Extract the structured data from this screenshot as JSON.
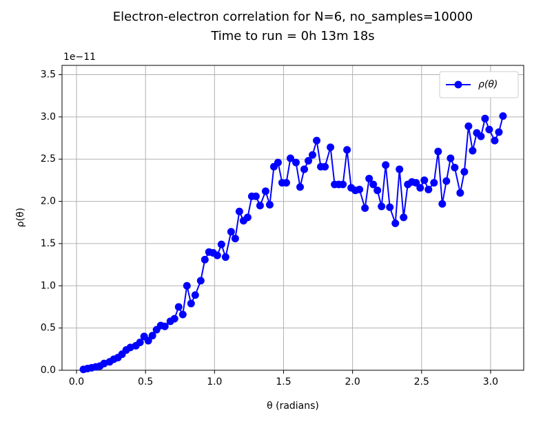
{
  "chart_data": {
    "type": "line",
    "title": "Electron-electron correlation for N=6, no_samples=10000",
    "subtitle": "Time to run = 0h 13m 18s",
    "x_label": "θ (radians)",
    "y_label": "ρ(θ)",
    "y_offset_text": "1e−11",
    "x": [
      0.05,
      0.08,
      0.11,
      0.14,
      0.17,
      0.2,
      0.24,
      0.27,
      0.3,
      0.33,
      0.36,
      0.39,
      0.43,
      0.46,
      0.49,
      0.52,
      0.55,
      0.58,
      0.61,
      0.64,
      0.68,
      0.71,
      0.74,
      0.77,
      0.8,
      0.83,
      0.86,
      0.9,
      0.93,
      0.96,
      0.99,
      1.02,
      1.05,
      1.08,
      1.12,
      1.15,
      1.18,
      1.21,
      1.24,
      1.27,
      1.3,
      1.33,
      1.37,
      1.4,
      1.43,
      1.46,
      1.49,
      1.52,
      1.55,
      1.59,
      1.62,
      1.65,
      1.68,
      1.71,
      1.74,
      1.77,
      1.8,
      1.84,
      1.87,
      1.9,
      1.93,
      1.96,
      1.99,
      2.02,
      2.05,
      2.09,
      2.12,
      2.15,
      2.18,
      2.21,
      2.24,
      2.27,
      2.31,
      2.34,
      2.37,
      2.4,
      2.43,
      2.46,
      2.49,
      2.52,
      2.55,
      2.59,
      2.62,
      2.65,
      2.68,
      2.71,
      2.74,
      2.78,
      2.81,
      2.84,
      2.87,
      2.9,
      2.93,
      2.96,
      2.99,
      3.03,
      3.06,
      3.09
    ],
    "series": [
      {
        "name": "ρ(θ)",
        "color": "#0000ff",
        "values": [
          0.01,
          0.02,
          0.03,
          0.04,
          0.05,
          0.08,
          0.1,
          0.13,
          0.15,
          0.19,
          0.24,
          0.27,
          0.29,
          0.33,
          0.4,
          0.35,
          0.41,
          0.48,
          0.53,
          0.52,
          0.58,
          0.61,
          0.75,
          0.66,
          1.0,
          0.79,
          0.89,
          1.06,
          1.31,
          1.4,
          1.39,
          1.36,
          1.49,
          1.34,
          1.64,
          1.56,
          1.88,
          1.77,
          1.81,
          2.06,
          2.06,
          1.95,
          2.12,
          1.96,
          2.41,
          2.46,
          2.22,
          2.22,
          2.51,
          2.46,
          2.17,
          2.38,
          2.48,
          2.55,
          2.72,
          2.41,
          2.41,
          2.64,
          2.2,
          2.2,
          2.2,
          2.61,
          2.16,
          2.13,
          2.14,
          1.92,
          2.27,
          2.2,
          2.13,
          1.94,
          2.43,
          1.93,
          1.74,
          2.38,
          1.81,
          2.2,
          2.23,
          2.22,
          2.16,
          2.25,
          2.14,
          2.22,
          2.59,
          1.97,
          2.24,
          2.51,
          2.4,
          2.1,
          2.35,
          2.89,
          2.6,
          2.81,
          2.77,
          2.98,
          2.85,
          2.72,
          2.82,
          3.01
        ]
      }
    ],
    "xlim": [
      -0.105,
      3.24
    ],
    "ylim": [
      0,
      3.61
    ],
    "xticks": [
      {
        "value": 0,
        "label": "0.0"
      },
      0.5,
      {
        "value": 1,
        "label": "1.0"
      },
      1.5,
      {
        "value": 2,
        "label": "2.0"
      },
      2.5,
      {
        "value": 3,
        "label": "3.0"
      }
    ],
    "yticks": [
      {
        "value": 0,
        "label": "0.0"
      },
      0.5,
      {
        "value": 1,
        "label": "1.0"
      },
      1.5,
      {
        "value": 2,
        "label": "2.0"
      },
      2.5,
      {
        "value": 3,
        "label": "3.0"
      },
      3.5
    ],
    "grid": true,
    "legend": "upper right"
  }
}
